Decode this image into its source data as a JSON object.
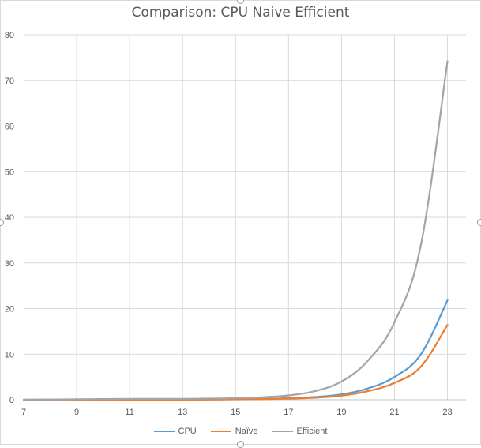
{
  "chart_data": {
    "type": "line",
    "title": "Comparison: CPU Naive Efficient",
    "xlabel": "",
    "ylabel": "",
    "xlim": [
      7,
      23.7
    ],
    "ylim": [
      0,
      80
    ],
    "x_ticks": [
      7,
      9,
      11,
      13,
      15,
      17,
      19,
      21,
      23
    ],
    "y_ticks": [
      0,
      10,
      20,
      30,
      40,
      50,
      60,
      70,
      80
    ],
    "grid": true,
    "legend_position": "bottom",
    "x": [
      7,
      8,
      9,
      10,
      11,
      12,
      13,
      14,
      15,
      16,
      17,
      18,
      19,
      20,
      21,
      22,
      23
    ],
    "series": [
      {
        "name": "CPU",
        "color": "#5b9bd5",
        "values": [
          0.0,
          0.0,
          0.01,
          0.01,
          0.02,
          0.03,
          0.05,
          0.08,
          0.12,
          0.2,
          0.35,
          0.6,
          1.2,
          2.5,
          5.0,
          10.0,
          21.8
        ]
      },
      {
        "name": "Naïve",
        "color": "#ed7d31",
        "values": [
          0.0,
          0.0,
          0.01,
          0.01,
          0.01,
          0.02,
          0.03,
          0.05,
          0.08,
          0.14,
          0.25,
          0.45,
          0.9,
          1.9,
          3.7,
          7.3,
          16.4
        ]
      },
      {
        "name": "Efficient",
        "color": "#a5a5a5",
        "values": [
          0.0,
          0.05,
          0.1,
          0.15,
          0.2,
          0.2,
          0.2,
          0.25,
          0.35,
          0.55,
          0.95,
          1.9,
          4.0,
          8.6,
          17.0,
          34.0,
          74.2
        ]
      }
    ]
  },
  "colors": {
    "grid": "#d9d9d9",
    "axis": "#bfbfbf",
    "text": "#595959"
  }
}
